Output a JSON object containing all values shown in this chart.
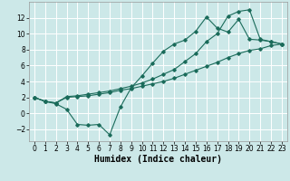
{
  "title": "",
  "xlabel": "Humidex (Indice chaleur)",
  "bg_color": "#cce8e8",
  "line_color": "#1a6b5a",
  "grid_color": "#ffffff",
  "series": {
    "upper": {
      "x": [
        0,
        1,
        2,
        3,
        4,
        5,
        6,
        7,
        8,
        9,
        10,
        11,
        12,
        13,
        14,
        15,
        16,
        17,
        18,
        19,
        20,
        21,
        22,
        23
      ],
      "y": [
        2.0,
        1.5,
        1.3,
        2.1,
        2.2,
        2.4,
        2.6,
        2.8,
        3.1,
        3.4,
        3.8,
        4.3,
        4.9,
        5.5,
        6.5,
        7.5,
        9.0,
        10.0,
        12.2,
        12.8,
        13.0,
        9.3,
        9.0,
        8.7
      ]
    },
    "zigzag": {
      "x": [
        0,
        1,
        2,
        3,
        4,
        5,
        6,
        7,
        8,
        9,
        10,
        11,
        12,
        13,
        14,
        15,
        16,
        17,
        18,
        19,
        20,
        21,
        22,
        23
      ],
      "y": [
        2.0,
        1.5,
        1.2,
        0.5,
        -1.4,
        -1.5,
        -1.4,
        -2.7,
        0.8,
        3.2,
        4.7,
        6.3,
        7.8,
        8.7,
        9.2,
        10.3,
        12.1,
        10.7,
        10.2,
        11.8,
        9.3,
        9.2,
        9.0,
        8.7
      ]
    },
    "lower": {
      "x": [
        0,
        1,
        2,
        3,
        4,
        5,
        6,
        7,
        8,
        9,
        10,
        11,
        12,
        13,
        14,
        15,
        16,
        17,
        18,
        19,
        20,
        21,
        22,
        23
      ],
      "y": [
        2.0,
        1.5,
        1.3,
        2.0,
        2.1,
        2.2,
        2.4,
        2.6,
        2.9,
        3.1,
        3.4,
        3.7,
        4.0,
        4.4,
        4.9,
        5.4,
        5.9,
        6.4,
        7.0,
        7.5,
        7.9,
        8.1,
        8.5,
        8.7
      ]
    }
  },
  "xlim": [
    -0.5,
    23.5
  ],
  "ylim": [
    -3.5,
    14.0
  ],
  "xticks": [
    0,
    1,
    2,
    3,
    4,
    5,
    6,
    7,
    8,
    9,
    10,
    11,
    12,
    13,
    14,
    15,
    16,
    17,
    18,
    19,
    20,
    21,
    22,
    23
  ],
  "yticks": [
    -2,
    0,
    2,
    4,
    6,
    8,
    10,
    12
  ],
  "tick_fontsize": 5.5,
  "xlabel_fontsize": 7.0
}
